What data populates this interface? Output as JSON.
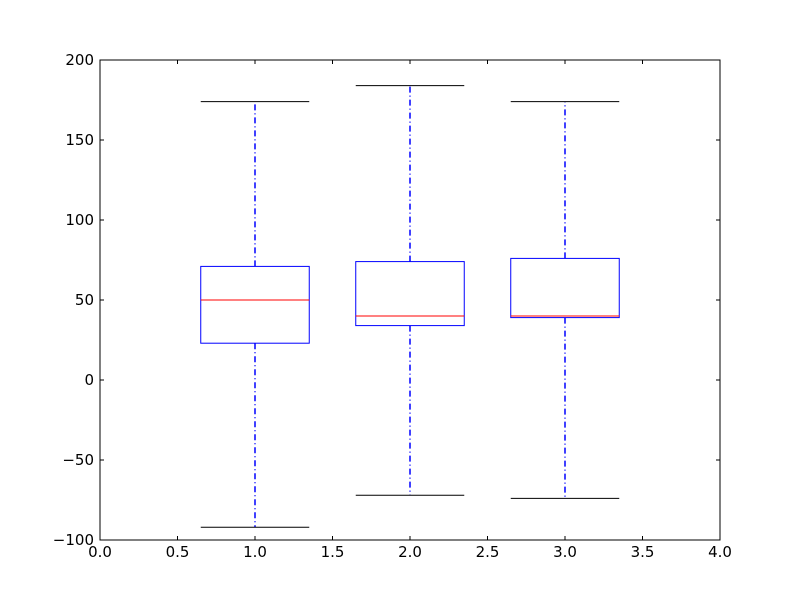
{
  "chart_data": {
    "type": "box",
    "title": "",
    "xlabel": "",
    "ylabel": "",
    "xlim": [
      0.0,
      4.0
    ],
    "ylim": [
      -100,
      200
    ],
    "xticks": [
      "0.0",
      "0.5",
      "1.0",
      "1.5",
      "2.0",
      "2.5",
      "3.0",
      "3.5",
      "4.0"
    ],
    "yticks": [
      "200",
      "150",
      "100",
      "50",
      "0",
      "−50",
      "−100"
    ],
    "grid": false,
    "boxes": [
      {
        "position": 1.0,
        "whisker_low": -92,
        "q1": 23,
        "median": 50,
        "q3": 71,
        "whisker_high": 174
      },
      {
        "position": 2.0,
        "whisker_low": -72,
        "q1": 34,
        "median": 40,
        "q3": 74,
        "whisker_high": 184
      },
      {
        "position": 3.0,
        "whisker_low": -74,
        "q1": 39,
        "median": 40,
        "q3": 76,
        "whisker_high": 174
      }
    ],
    "colors": {
      "box": "#0000ff",
      "whisker": "#0000ff",
      "cap": "#000000",
      "median": "#ff0000",
      "axes": "#000000"
    }
  }
}
